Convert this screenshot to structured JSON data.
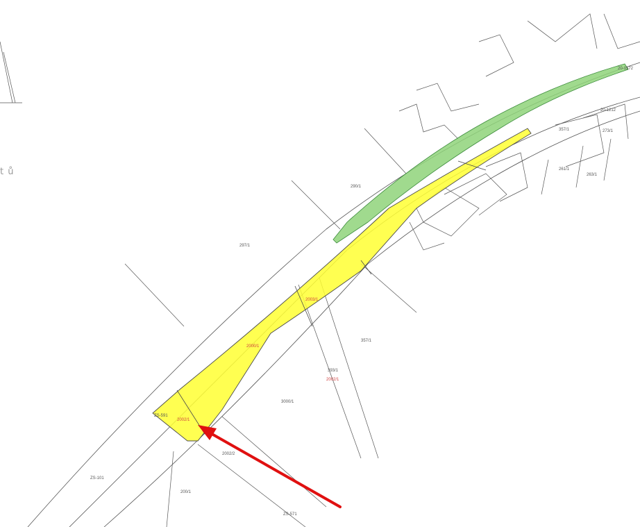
{
  "edge_text": "t ů",
  "parcel_labels": [
    {
      "id": "p1",
      "text": "297/1"
    },
    {
      "id": "p2",
      "text": "290/1"
    },
    {
      "id": "p3",
      "text": "357/1"
    },
    {
      "id": "p4",
      "text": "2000/1"
    },
    {
      "id": "p5",
      "text": "393/1"
    },
    {
      "id": "p6",
      "text": "2002/2"
    },
    {
      "id": "p7",
      "text": "2002/1"
    },
    {
      "id": "p8",
      "text": "200/1"
    },
    {
      "id": "p9",
      "text": "261/1"
    },
    {
      "id": "p10",
      "text": "263/1"
    },
    {
      "id": "p11",
      "text": "273/1"
    },
    {
      "id": "p12",
      "text": "3000/1"
    },
    {
      "id": "p13",
      "text": "2003/1"
    },
    {
      "id": "p14",
      "text": "2002/1"
    },
    {
      "id": "p15",
      "text": "ZS-591"
    },
    {
      "id": "p16",
      "text": "20-1572"
    },
    {
      "id": "p17",
      "text": "20-1212"
    },
    {
      "id": "p18",
      "text": "ZS-101"
    },
    {
      "id": "p19",
      "text": "ZS-571"
    },
    {
      "id": "p20",
      "text": "357/1"
    }
  ],
  "colors": {
    "yellow_parcel": "#ffff33",
    "green_parcel": "#8fd37a",
    "lines": "#4a4a4a",
    "arrow": "#e01010",
    "red_text": "#d04040"
  },
  "arrow": {
    "icon": "red-pointer-arrow"
  }
}
